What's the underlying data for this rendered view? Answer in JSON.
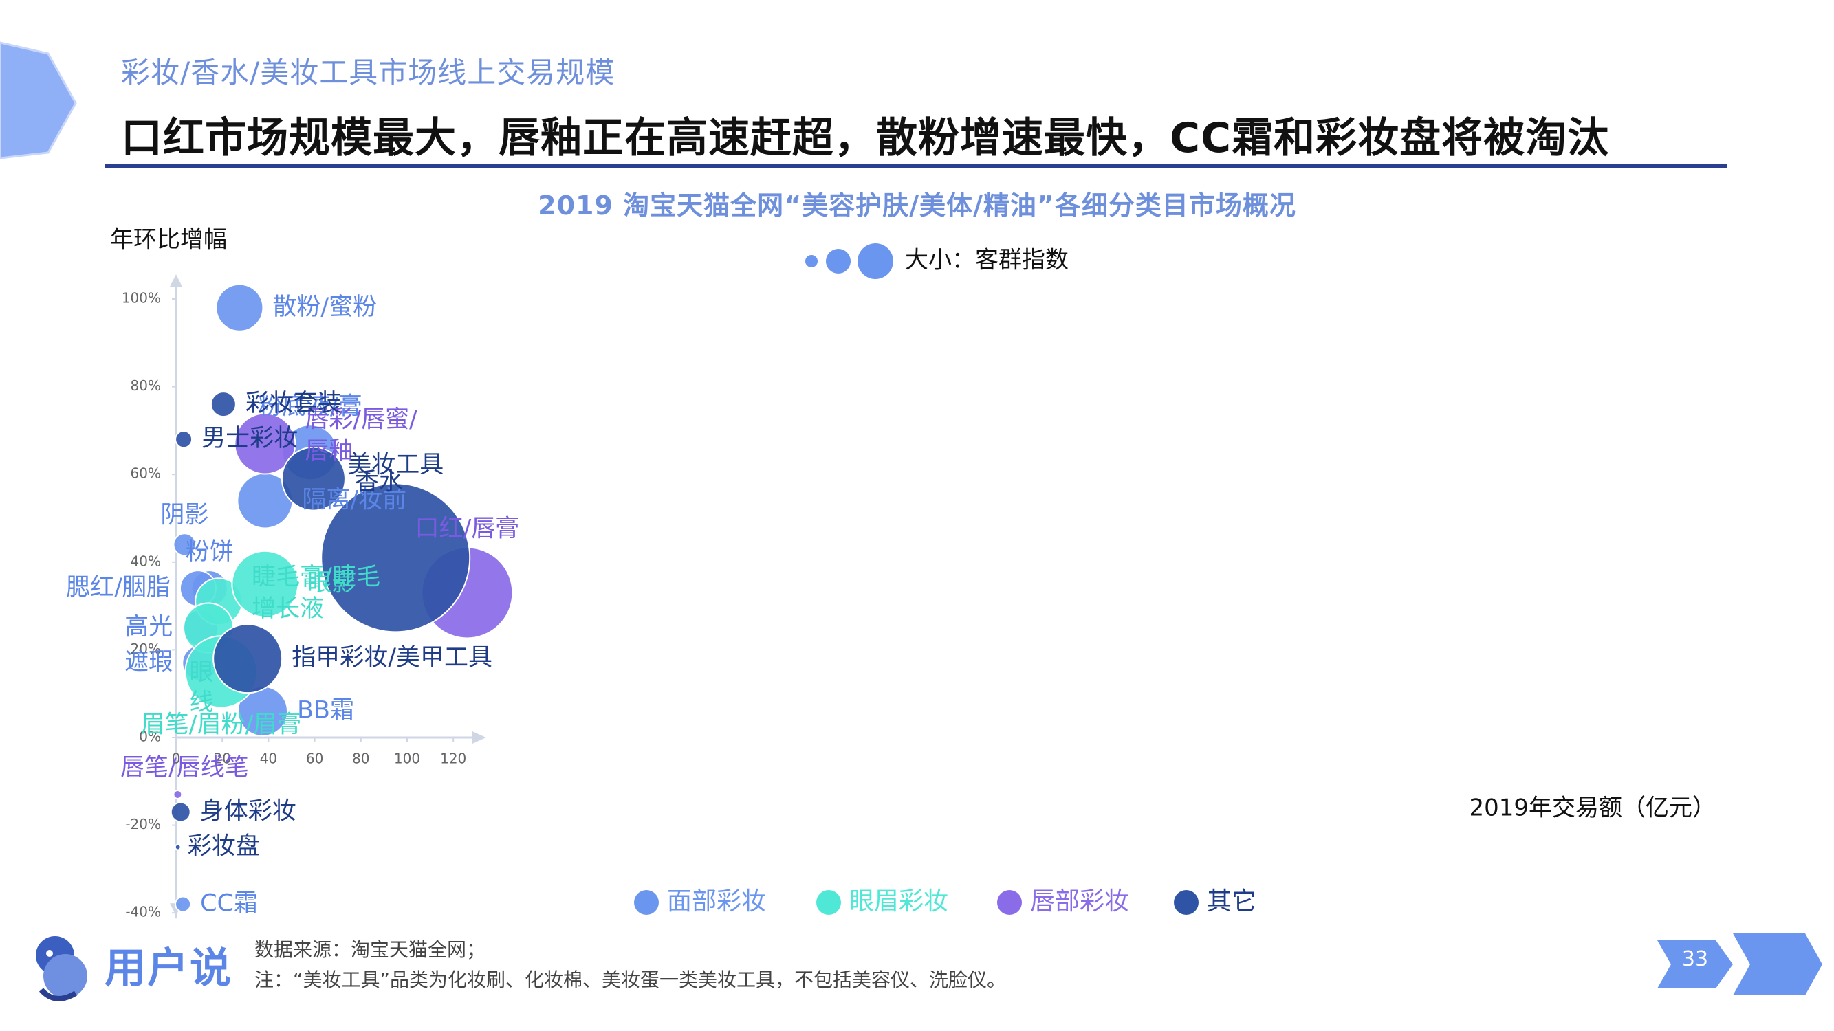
{
  "header": {
    "subtitle": "彩妆/香水/美妆工具市场线上交易规模",
    "headline": "口红市场规模最大，唇釉正在高速赶超，散粉增速最快，CC霜和彩妆盘将被淘汰"
  },
  "footer": {
    "brand": "用户说",
    "source": "数据来源：淘宝天猫全网；",
    "note": "注：“美妆工具”品类为化妆刷、化妆棉、美妆蛋一类美妆工具，不包括美容仪、洗脸仪。",
    "page": "33"
  },
  "colors": {
    "accent": "#6e8fdc",
    "face": "#6b96ef",
    "eye": "#4fe8d6",
    "lip": "#8a6be8",
    "other": "#2f54a6"
  },
  "chart_data": {
    "type": "scatter",
    "title": "2019 淘宝天猫全网“美容护肤/美体/精油”各细分类目市场概况",
    "xlabel": "2019年交易额（亿元）",
    "ylabel": "年环比增幅",
    "size_legend": "大小：客群指数",
    "xlim": [
      0,
      130
    ],
    "ylim": [
      -40,
      105
    ],
    "xticks": [
      "0",
      "20",
      "40",
      "60",
      "80",
      "100",
      "120"
    ],
    "yticks": [
      "-40%",
      "-20%",
      "0%",
      "20%",
      "40%",
      "60%",
      "80%",
      "100%"
    ],
    "series": [
      {
        "name": "面部彩妆",
        "color": "#6b96ef",
        "points": [
          {
            "label": "散粉/蜜粉",
            "x": 27.5,
            "y": 98,
            "size": 34
          },
          {
            "label": "粉底液/膏",
            "x": 58,
            "y": 65,
            "size": 40
          },
          {
            "label": "隔离/妆前",
            "x": 38.5,
            "y": 54,
            "size": 40
          },
          {
            "label": "BB霜",
            "x": 37.5,
            "y": 6,
            "size": 36
          },
          {
            "label": "阴影",
            "x": 3.7,
            "y": 44,
            "size": 16
          },
          {
            "label": "粉饼",
            "x": 14.5,
            "y": 34,
            "size": 26
          },
          {
            "label": "腮红/胭脂",
            "x": 9.5,
            "y": 34,
            "size": 26
          },
          {
            "label": "高光",
            "x": 10.5,
            "y": 25,
            "size": 26
          },
          {
            "label": "遮瑕",
            "x": 10.5,
            "y": 17,
            "size": 26
          },
          {
            "label": "CC霜",
            "x": 3,
            "y": -38,
            "size": 11
          }
        ]
      },
      {
        "name": "眼眉彩妆",
        "color": "#4fe8d6",
        "points": [
          {
            "label": "睫毛膏/睫毛增长液",
            "x": 18.5,
            "y": 31,
            "size": 34
          },
          {
            "label": "眼线",
            "x": 14,
            "y": 25,
            "size": 36
          },
          {
            "label": "眉笔/眉粉/眉膏",
            "x": 19.5,
            "y": 15,
            "size": 52
          },
          {
            "label": "眼影",
            "x": 38.5,
            "y": 35,
            "size": 48
          }
        ]
      },
      {
        "name": "唇部彩妆",
        "color": "#8a6be8",
        "points": [
          {
            "label": "唇彩/唇蜜/唇釉",
            "x": 38.5,
            "y": 67,
            "size": 44
          },
          {
            "label": "口红/唇膏",
            "x": 126,
            "y": 33,
            "size": 66
          },
          {
            "label": "唇笔/唇线笔",
            "x": 0.7,
            "y": -13,
            "size": 6
          }
        ]
      },
      {
        "name": "其它",
        "color": "#2f54a6",
        "points": [
          {
            "label": "彩妆套装",
            "x": 20.5,
            "y": 76,
            "size": 18
          },
          {
            "label": "男士彩妆",
            "x": 3.3,
            "y": 68,
            "size": 12
          },
          {
            "label": "香水",
            "x": 59.5,
            "y": 59,
            "size": 46
          },
          {
            "label": "美妆工具",
            "x": 95,
            "y": 41,
            "size": 108
          },
          {
            "label": "指甲彩妆/美甲工具",
            "x": 31,
            "y": 18,
            "size": 50
          },
          {
            "label": "身体彩妆",
            "x": 2,
            "y": -17,
            "size": 14
          },
          {
            "label": "彩妆盘",
            "x": 0.8,
            "y": -25,
            "size": 4
          }
        ]
      }
    ]
  }
}
